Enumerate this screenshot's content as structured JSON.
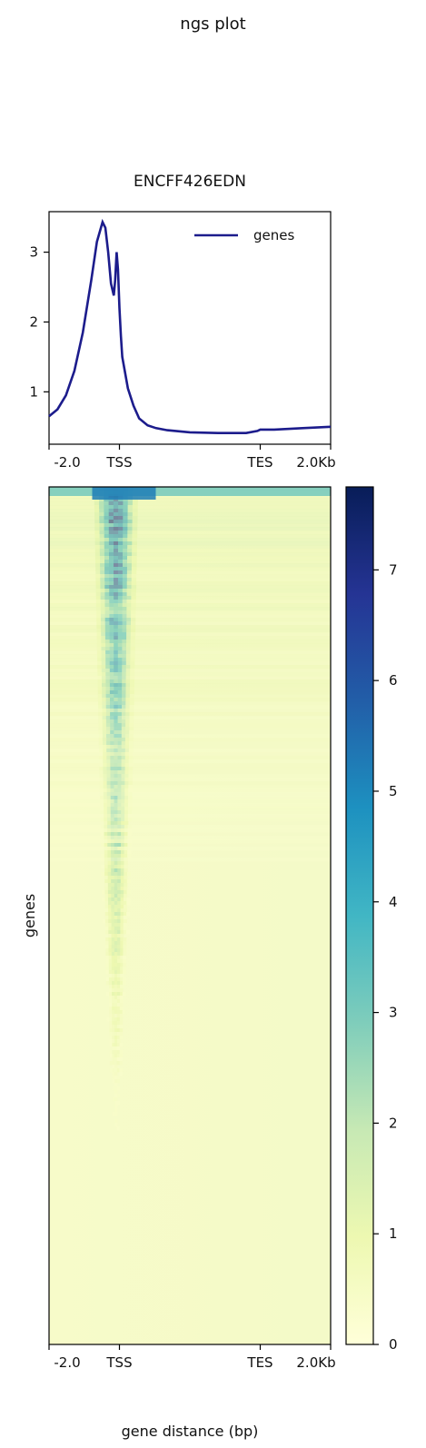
{
  "figure": {
    "title": "ngs plot"
  },
  "chart_data": [
    {
      "type": "line",
      "title": "ENCFF426EDN",
      "xlabel": "",
      "ylabel": "",
      "x_ticks": [
        "-2.0",
        "TSS",
        "TES",
        "2.0Kb"
      ],
      "y_ticks": [
        1,
        2,
        3
      ],
      "ylim": [
        0.25,
        3.58
      ],
      "xlim": [
        0,
        1
      ],
      "legend": {
        "position": "top-right",
        "entries": [
          "genes"
        ]
      },
      "series": [
        {
          "name": "genes",
          "color": "#1c1c8c",
          "x": [
            0.0,
            0.03,
            0.06,
            0.09,
            0.12,
            0.15,
            0.17,
            0.19,
            0.2,
            0.21,
            0.22,
            0.23,
            0.235,
            0.24,
            0.245,
            0.25,
            0.255,
            0.26,
            0.28,
            0.3,
            0.32,
            0.35,
            0.38,
            0.42,
            0.5,
            0.6,
            0.65,
            0.7,
            0.74,
            0.75,
            0.8,
            0.9,
            1.0
          ],
          "y": [
            0.65,
            0.75,
            0.95,
            1.3,
            1.85,
            2.6,
            3.15,
            3.43,
            3.35,
            3.0,
            2.55,
            2.38,
            2.6,
            3.0,
            2.75,
            2.2,
            1.8,
            1.5,
            1.05,
            0.8,
            0.62,
            0.52,
            0.48,
            0.45,
            0.42,
            0.41,
            0.41,
            0.41,
            0.44,
            0.46,
            0.46,
            0.48,
            0.5
          ]
        }
      ]
    },
    {
      "type": "heatmap",
      "xlabel": "gene distance (bp)",
      "ylabel": "genes",
      "x_ticks": [
        "-2.0",
        "TSS",
        "TES",
        "2.0Kb"
      ],
      "colorbar": {
        "ticks": [
          0,
          1,
          2,
          3,
          4,
          5,
          6,
          7
        ],
        "range": [
          0,
          7.75
        ],
        "colormap": "YlGnBu"
      },
      "profile_summary": {
        "description_rows": "genes sorted by signal, strongest at top",
        "peak_near": "TSS"
      }
    }
  ]
}
